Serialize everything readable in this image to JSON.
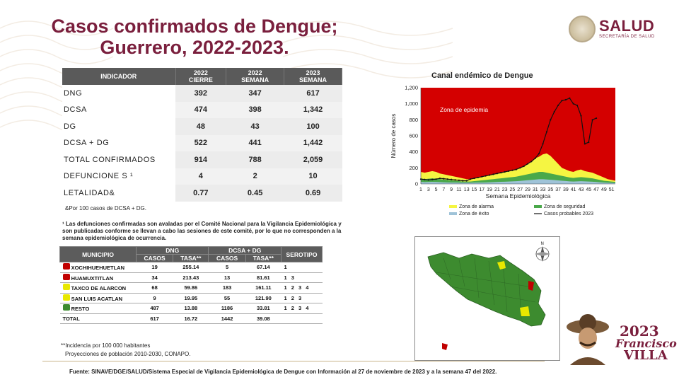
{
  "title": {
    "line1": "Casos confirmados de Dengue;",
    "line2": "Guerrero, 2022-2023."
  },
  "logo": {
    "name": "SALUD",
    "subtitle": "SECRETARÍA DE SALUD"
  },
  "indicator_table": {
    "headers": [
      {
        "l1": "INDICADOR",
        "l2": ""
      },
      {
        "l1": "2022",
        "l2": "CIERRE"
      },
      {
        "l1": "2022",
        "l2": "SEMANA"
      },
      {
        "l1": "2023",
        "l2": "SEMANA"
      }
    ],
    "rows": [
      {
        "label": "DNG",
        "v1": "392",
        "v2": "347",
        "v3": "617"
      },
      {
        "label": "DCSA",
        "v1": "474",
        "v2": "398",
        "v3": "1,342"
      },
      {
        "label": "DG",
        "v1": "48",
        "v2": "43",
        "v3": "100"
      },
      {
        "label": "DCSA + DG",
        "v1": "522",
        "v2": "441",
        "v3": "1,442"
      },
      {
        "label": "TOTAL CONFIRMADOS",
        "v1": "914",
        "v2": "788",
        "v3": "2,059"
      },
      {
        "label": "DEFUNCIONE S ¹",
        "v1": "4",
        "v2": "2",
        "v3": "10"
      },
      {
        "label": "LETALIDAD&",
        "v1": "0.77",
        "v2": "0.45",
        "v3": "0.69"
      }
    ],
    "note": "&Por 100 casos de DCSA + DG."
  },
  "defunciones_note": "¹ Las defunciones confirmadas son avaladas por el Comité Nacional para la Vigilancia Epidemiológica y son publicadas conforme se llevan a cabo las sesiones de este comité, por lo que no corresponden a la semana epidemiológica de ocurrencia.",
  "municipio_table": {
    "headers": {
      "municipio": "MUNICIPIO",
      "dng": "DNG",
      "dcsa": "DCSA + DG",
      "serotipo": "SEROTIPO",
      "casos": "CASOS",
      "tasa": "TASA**"
    },
    "rows": [
      {
        "color": "#c00000",
        "name": "XOCHIHUEHUETLAN",
        "c1": "19",
        "t1": "255.14",
        "c2": "5",
        "t2": "67.14",
        "sero": "1"
      },
      {
        "color": "#c00000",
        "name": "HUAMUXTITLAN",
        "c1": "34",
        "t1": "213.43",
        "c2": "13",
        "t2": "81.61",
        "sero": "1 3"
      },
      {
        "color": "#e8e800",
        "name": "TAXCO DE ALARCON",
        "c1": "68",
        "t1": "59.86",
        "c2": "183",
        "t2": "161.11",
        "sero": "1 2 3 4"
      },
      {
        "color": "#e8e800",
        "name": "SAN LUIS ACATLAN",
        "c1": "9",
        "t1": "19.95",
        "c2": "55",
        "t2": "121.90",
        "sero": "1 2 3"
      },
      {
        "color": "#3d8b2f",
        "name": "RESTO",
        "c1": "487",
        "t1": "13.88",
        "c2": "1186",
        "t2": "33.81",
        "sero": "1 2 3 4"
      },
      {
        "color": "",
        "name": "TOTAL",
        "c1": "617",
        "t1": "16.72",
        "c2": "1442",
        "t2": "39.08",
        "sero": ""
      }
    ]
  },
  "footnotes": {
    "incidencia": "**Incidencia por 100 000 habitantes",
    "proyecciones": "Proyecciones de población 2010-2030,  CONAPO."
  },
  "source": "Fuente: SINAVE/DGE/SALUD/Sistema Especial de Vigilancia Epidemiológica de Dengue con Información al 27 de noviembre de 2023 y a la semana 47 del 2022.",
  "chart_data": {
    "type": "area",
    "title": "Canal endémico de Dengue",
    "xlabel": "Semana Epidemiológica",
    "ylabel": "Número de casos",
    "ylim": [
      0,
      1200
    ],
    "yticks": [
      "0",
      "200",
      "400",
      "600",
      "800",
      "1,000",
      "1,200"
    ],
    "xticks": [
      1,
      3,
      5,
      7,
      9,
      11,
      13,
      15,
      17,
      19,
      21,
      23,
      25,
      27,
      29,
      31,
      33,
      35,
      37,
      39,
      41,
      43,
      45,
      47,
      49,
      51
    ],
    "annotation": "Zona de epidemia",
    "colors": {
      "epidemia": "#d40000",
      "alarma": "#f5f542",
      "seguridad": "#4aa84a",
      "exito": "#9fc3d8",
      "casos": "#111111"
    },
    "legend": [
      "Zona de alarma",
      "Zona de seguridad",
      "Zona de éxito",
      "Casos probables 2023"
    ],
    "weeks": [
      1,
      2,
      3,
      4,
      5,
      6,
      7,
      8,
      9,
      10,
      11,
      12,
      13,
      14,
      15,
      16,
      17,
      18,
      19,
      20,
      21,
      22,
      23,
      24,
      25,
      26,
      27,
      28,
      29,
      30,
      31,
      32,
      33,
      34,
      35,
      36,
      37,
      38,
      39,
      40,
      41,
      42,
      43,
      44,
      45,
      46,
      47,
      48,
      49,
      50,
      51,
      52
    ],
    "alarma": [
      150,
      140,
      150,
      160,
      150,
      130,
      120,
      110,
      100,
      90,
      80,
      70,
      60,
      60,
      70,
      80,
      90,
      100,
      110,
      120,
      130,
      140,
      150,
      160,
      170,
      180,
      200,
      220,
      250,
      280,
      320,
      340,
      370,
      380,
      350,
      300,
      250,
      200,
      180,
      160,
      150,
      170,
      180,
      160,
      150,
      140,
      120,
      100,
      80,
      60,
      50,
      40
    ],
    "seguridad": [
      70,
      60,
      65,
      70,
      65,
      60,
      55,
      50,
      45,
      40,
      35,
      30,
      30,
      30,
      35,
      40,
      45,
      50,
      55,
      60,
      65,
      70,
      75,
      80,
      85,
      90,
      100,
      110,
      120,
      130,
      140,
      150,
      150,
      140,
      130,
      120,
      110,
      100,
      90,
      80,
      75,
      80,
      85,
      80,
      75,
      70,
      60,
      50,
      40,
      35,
      30,
      25
    ],
    "exito": [
      25,
      22,
      24,
      25,
      24,
      22,
      20,
      18,
      17,
      16,
      15,
      14,
      14,
      14,
      15,
      16,
      17,
      18,
      20,
      22,
      24,
      26,
      28,
      30,
      32,
      34,
      38,
      42,
      46,
      50,
      54,
      58,
      58,
      55,
      52,
      48,
      44,
      40,
      36,
      32,
      30,
      32,
      34,
      32,
      30,
      28,
      24,
      20,
      16,
      14,
      12,
      10
    ],
    "casos": [
      60,
      55,
      50,
      55,
      60,
      70,
      65,
      60,
      55,
      50,
      45,
      40,
      40,
      60,
      70,
      80,
      90,
      100,
      110,
      120,
      130,
      140,
      150,
      160,
      170,
      180,
      200,
      220,
      250,
      280,
      320,
      380,
      500,
      650,
      800,
      900,
      980,
      1040,
      1050,
      1070,
      1000,
      980,
      850,
      500,
      520,
      800,
      820
    ]
  }
}
